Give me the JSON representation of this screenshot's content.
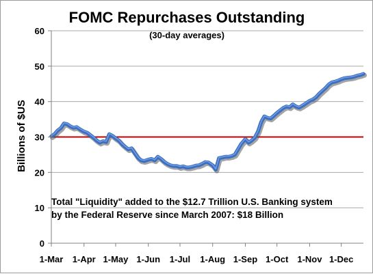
{
  "chart_data": {
    "type": "line",
    "title": "FOMC Repurchases Outstanding",
    "subtitle": "(30-day averages)",
    "xlabel": "",
    "ylabel": "Billions of $US",
    "ylim": [
      0,
      60
    ],
    "yticks": [
      0,
      10,
      20,
      30,
      40,
      50,
      60
    ],
    "xlim_days": [
      0,
      296
    ],
    "xticks": [
      {
        "label": "1-Mar",
        "day": 0
      },
      {
        "label": "1-Apr",
        "day": 31
      },
      {
        "label": "1-May",
        "day": 61
      },
      {
        "label": "1-Jun",
        "day": 92
      },
      {
        "label": "1-Jul",
        "day": 122
      },
      {
        "label": "1-Aug",
        "day": 153
      },
      {
        "label": "1-Sep",
        "day": 184
      },
      {
        "label": "1-Oct",
        "day": 214
      },
      {
        "label": "1-Nov",
        "day": 245
      },
      {
        "label": "1-Dec",
        "day": 275
      }
    ],
    "grid": "horizontal",
    "reference_line": {
      "value": 30,
      "color": "#c00000"
    },
    "series": [
      {
        "color": "#3b6fc4",
        "x": [
          0,
          3,
          6,
          9,
          12,
          15,
          18,
          21,
          24,
          27,
          31,
          34,
          37,
          40,
          43,
          46,
          49,
          52,
          55,
          58,
          61,
          64,
          67,
          70,
          73,
          76,
          79,
          82,
          85,
          88,
          92,
          95,
          98,
          101,
          104,
          107,
          110,
          113,
          116,
          119,
          122,
          125,
          128,
          131,
          134,
          137,
          140,
          143,
          146,
          149,
          153,
          156,
          159,
          162,
          165,
          168,
          171,
          174,
          177,
          180,
          184,
          187,
          190,
          193,
          196,
          199,
          202,
          205,
          208,
          211,
          214,
          217,
          220,
          223,
          226,
          229,
          232,
          235,
          238,
          241,
          245,
          248,
          251,
          254,
          257,
          260,
          263,
          266,
          269,
          272,
          275,
          278,
          281,
          284,
          287,
          290,
          293,
          296
        ],
        "y": [
          30.2,
          30.8,
          31.8,
          32.5,
          33.8,
          33.6,
          33.0,
          32.6,
          32.8,
          32.2,
          31.5,
          31.2,
          30.5,
          29.8,
          29.0,
          28.4,
          28.8,
          28.6,
          30.8,
          30.3,
          29.6,
          29.0,
          28.0,
          27.2,
          26.5,
          26.8,
          25.5,
          24.2,
          23.4,
          23.2,
          23.6,
          23.8,
          23.4,
          24.4,
          23.8,
          23.0,
          22.4,
          22.0,
          21.8,
          21.8,
          21.5,
          21.7,
          21.4,
          21.4,
          21.6,
          21.9,
          22.0,
          22.4,
          22.9,
          22.8,
          22.0,
          20.8,
          24.0,
          24.2,
          24.4,
          24.4,
          24.6,
          25.0,
          26.5,
          28.0,
          29.4,
          28.4,
          29.0,
          29.8,
          31.5,
          34.2,
          35.8,
          35.4,
          35.2,
          36.0,
          36.8,
          37.5,
          38.2,
          38.6,
          38.4,
          39.2,
          38.6,
          38.3,
          38.8,
          39.4,
          40.2,
          40.6,
          41.2,
          42.2,
          43.0,
          43.8,
          44.8,
          45.4,
          45.6,
          45.9,
          46.3,
          46.6,
          46.7,
          46.8,
          47.0,
          47.3,
          47.5,
          47.8
        ]
      }
    ],
    "annotation": [
      "Total \"Liquidity\" added to the $12.7 Trillion U.S. Banking system",
      "by the Federal Reserve since March 2007: $18 Billion"
    ]
  }
}
